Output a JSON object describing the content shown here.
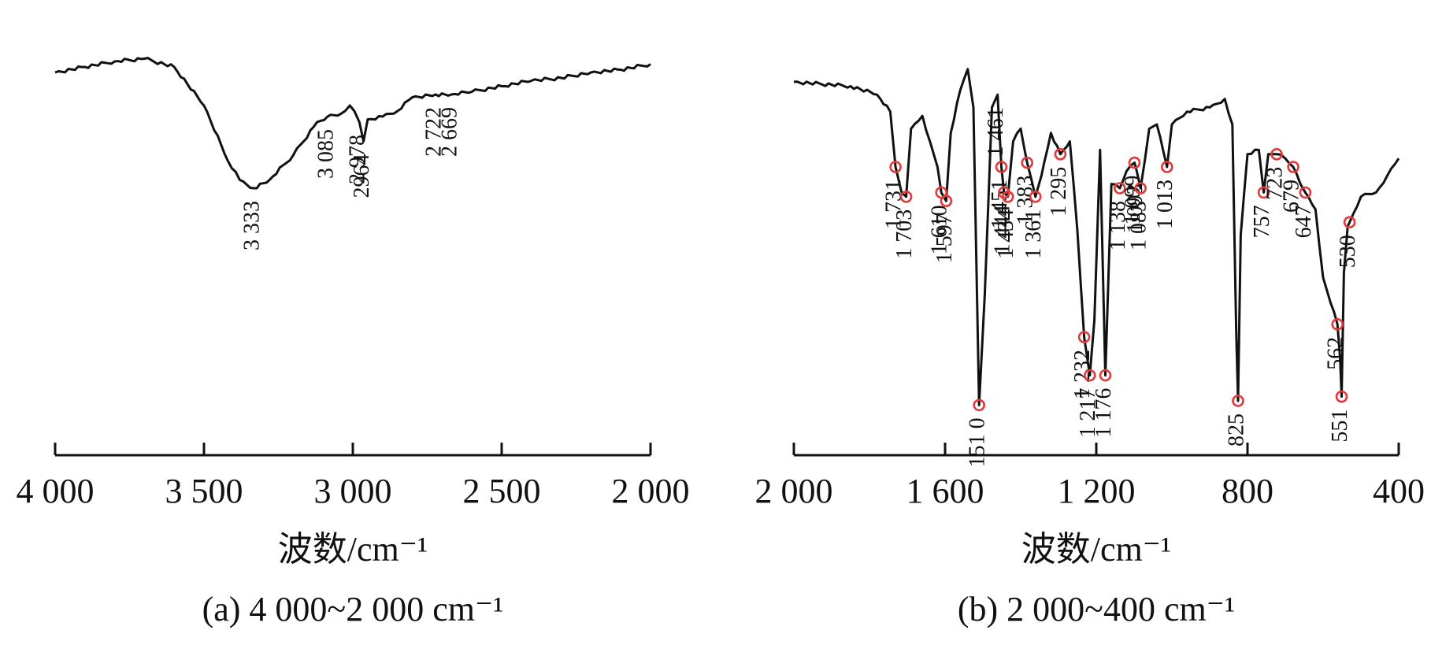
{
  "chart_data": [
    {
      "type": "line",
      "panel": "(a)",
      "caption": "(a) 4 000~2 000 cm⁻¹",
      "xlabel": "波数/cm⁻¹",
      "ylabel": "",
      "xlim": [
        4000,
        2000
      ],
      "x_reversed": true,
      "grid": false,
      "x_ticks": [
        4000,
        3500,
        3000,
        2500,
        2000
      ],
      "x_tick_labels": [
        "4 000",
        "3 500",
        "3 000",
        "2 500",
        "2 000"
      ],
      "ylim": [
        0,
        100
      ],
      "series": [
        {
          "points": [
            [
              4000,
              88
            ],
            [
              3900,
              90
            ],
            [
              3800,
              92
            ],
            [
              3700,
              93
            ],
            [
              3600,
              90
            ],
            [
              3500,
              76
            ],
            [
              3420,
              56
            ],
            [
              3380,
              49
            ],
            [
              3333,
              46
            ],
            [
              3280,
              49
            ],
            [
              3200,
              58
            ],
            [
              3120,
              70
            ],
            [
              3085,
              72
            ],
            [
              3040,
              73
            ],
            [
              3010,
              76
            ],
            [
              2995,
              74
            ],
            [
              2978,
              70
            ],
            [
              2964,
              63
            ],
            [
              2950,
              71
            ],
            [
              2900,
              72
            ],
            [
              2850,
              74
            ],
            [
              2800,
              79
            ],
            [
              2722,
              80
            ],
            [
              2669,
              80
            ],
            [
              2600,
              81
            ],
            [
              2500,
              83
            ],
            [
              2400,
              85
            ],
            [
              2300,
              86
            ],
            [
              2200,
              88
            ],
            [
              2100,
              89
            ],
            [
              2000,
              91
            ]
          ]
        }
      ],
      "peaks": [
        {
          "label": "3 333",
          "x": 3333,
          "marker": false
        },
        {
          "label": "3 085",
          "x": 3085,
          "marker": false
        },
        {
          "label": "2 978",
          "x": 2978,
          "marker": false
        },
        {
          "label": "2964",
          "x": 2964,
          "marker": false
        },
        {
          "label": "2 722",
          "x": 2722,
          "marker": false
        },
        {
          "label": "2 669",
          "x": 2669,
          "marker": false
        }
      ]
    },
    {
      "type": "line",
      "panel": "(b)",
      "caption": "(b) 2 000~400 cm⁻¹",
      "xlabel": "波数/cm⁻¹",
      "ylabel": "",
      "xlim": [
        2000,
        400
      ],
      "x_reversed": true,
      "grid": false,
      "x_ticks": [
        2000,
        1600,
        1200,
        800,
        400
      ],
      "x_tick_labels": [
        "2 000",
        "1 600",
        "1 200",
        "800",
        "400"
      ],
      "ylim": [
        0,
        100
      ],
      "marker_color": "#e03a3a",
      "series": [
        {
          "points": [
            [
              2000,
              90
            ],
            [
              1850,
              89
            ],
            [
              1780,
              87
            ],
            [
              1745,
              83
            ],
            [
              1731,
              70
            ],
            [
              1715,
              64
            ],
            [
              1703,
              63
            ],
            [
              1690,
              79
            ],
            [
              1660,
              82
            ],
            [
              1640,
              76
            ],
            [
              1620,
              70
            ],
            [
              1610,
              64
            ],
            [
              1597,
              62
            ],
            [
              1585,
              78
            ],
            [
              1560,
              88
            ],
            [
              1540,
              93
            ],
            [
              1525,
              84
            ],
            [
              1510,
              14
            ],
            [
              1495,
              40
            ],
            [
              1476,
              84
            ],
            [
              1461,
              87
            ],
            [
              1451,
              70
            ],
            [
              1444,
              64
            ],
            [
              1434,
              63
            ],
            [
              1420,
              76
            ],
            [
              1400,
              79
            ],
            [
              1383,
              71
            ],
            [
              1361,
              63
            ],
            [
              1345,
              68
            ],
            [
              1320,
              78
            ],
            [
              1295,
              73
            ],
            [
              1270,
              76
            ],
            [
              1250,
              55
            ],
            [
              1232,
              30
            ],
            [
              1217,
              21
            ],
            [
              1205,
              34
            ],
            [
              1190,
              74
            ],
            [
              1176,
              21
            ],
            [
              1160,
              66
            ],
            [
              1138,
              65
            ],
            [
              1120,
              69
            ],
            [
              1099,
              71
            ],
            [
              1093,
              69
            ],
            [
              1083,
              65
            ],
            [
              1060,
              79
            ],
            [
              1040,
              80
            ],
            [
              1013,
              70
            ],
            [
              1000,
              80
            ],
            [
              960,
              83
            ],
            [
              900,
              84
            ],
            [
              860,
              86
            ],
            [
              840,
              80
            ],
            [
              830,
              32
            ],
            [
              825,
              15
            ],
            [
              818,
              54
            ],
            [
              800,
              73
            ],
            [
              770,
              74
            ],
            [
              757,
              64
            ],
            [
              745,
              73
            ],
            [
              723,
              73
            ],
            [
              700,
              72
            ],
            [
              679,
              70
            ],
            [
              660,
              66
            ],
            [
              647,
              64
            ],
            [
              620,
              60
            ],
            [
              600,
              44
            ],
            [
              580,
              38
            ],
            [
              562,
              33
            ],
            [
              555,
              25
            ],
            [
              551,
              16
            ],
            [
              545,
              45
            ],
            [
              535,
              56
            ],
            [
              530,
              57
            ],
            [
              500,
              63
            ],
            [
              460,
              64
            ],
            [
              430,
              68
            ],
            [
              400,
              72
            ]
          ]
        }
      ],
      "peaks": [
        {
          "label": "1 731",
          "x": 1731,
          "marker": true
        },
        {
          "label": "1 703",
          "x": 1703,
          "marker": true
        },
        {
          "label": "1 610",
          "x": 1610,
          "marker": true
        },
        {
          "label": "1 597",
          "x": 1597,
          "marker": true
        },
        {
          "label": "151 0",
          "x": 1510,
          "marker": true
        },
        {
          "label": "1 461",
          "x": 1461,
          "marker": false
        },
        {
          "label": "1 451",
          "x": 1451,
          "marker": true
        },
        {
          "label": "1 444",
          "x": 1444,
          "marker": true
        },
        {
          "label": "1 434",
          "x": 1434,
          "marker": true
        },
        {
          "label": "1 383",
          "x": 1383,
          "marker": true
        },
        {
          "label": "1 361",
          "x": 1361,
          "marker": true
        },
        {
          "label": "1 295",
          "x": 1295,
          "marker": true
        },
        {
          "label": "1 232",
          "x": 1232,
          "marker": true
        },
        {
          "label": "1 217",
          "x": 1217,
          "marker": true
        },
        {
          "label": "1 176",
          "x": 1176,
          "marker": true
        },
        {
          "label": "1 138",
          "x": 1138,
          "marker": true
        },
        {
          "label": "1 099",
          "x": 1099,
          "marker": true
        },
        {
          "label": "1 093",
          "x": 1093,
          "marker": false
        },
        {
          "label": "1 083",
          "x": 1083,
          "marker": true
        },
        {
          "label": "1 013",
          "x": 1013,
          "marker": true
        },
        {
          "label": "825",
          "x": 825,
          "marker": true
        },
        {
          "label": "757",
          "x": 757,
          "marker": true
        },
        {
          "label": "723",
          "x": 723,
          "marker": true
        },
        {
          "label": "679",
          "x": 679,
          "marker": true
        },
        {
          "label": "647",
          "x": 647,
          "marker": true
        },
        {
          "label": "562",
          "x": 562,
          "marker": true
        },
        {
          "label": "551",
          "x": 551,
          "marker": true
        },
        {
          "label": "530",
          "x": 530,
          "marker": true
        }
      ]
    }
  ]
}
